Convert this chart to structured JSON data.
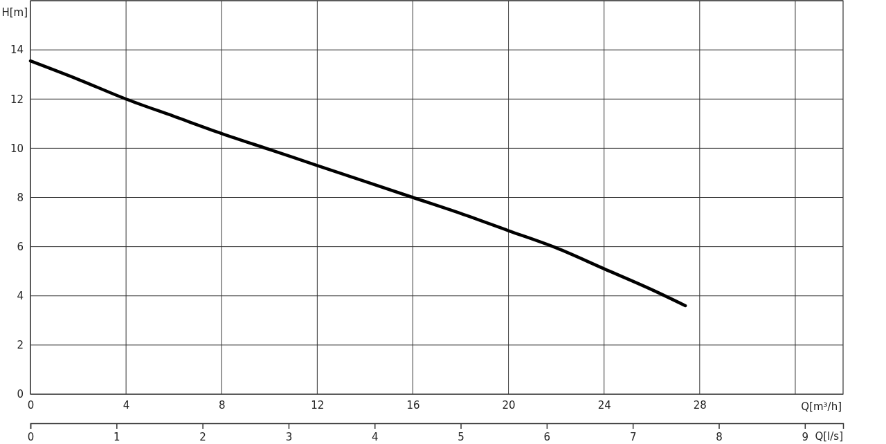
{
  "chart_data": {
    "type": "line",
    "xlabel": "Q[m³/h]",
    "ylabel": "H[m]",
    "x2label": "Q[l/s]",
    "xlim": [
      0,
      34
    ],
    "xticks": [
      0,
      4,
      8,
      12,
      16,
      20,
      24,
      28,
      {
        "value": 32,
        "label": null
      }
    ],
    "ylim": [
      0,
      16
    ],
    "yticks": [
      0,
      2,
      4,
      6,
      8,
      10,
      12,
      14,
      {
        "value": 16,
        "label": null
      }
    ],
    "x2lim": [
      0,
      9.444
    ],
    "x2ticks": [
      0,
      1,
      2,
      3,
      4,
      5,
      6,
      7,
      8,
      9
    ],
    "grid": true,
    "marker": "none",
    "line_style": "solid",
    "series": [
      {
        "color": "#000000",
        "x": [
          0,
          2,
          4,
          6,
          8,
          10,
          12,
          14,
          16,
          18,
          20,
          22,
          24,
          26,
          27.4
        ],
        "values": [
          13.55,
          12.8,
          12.0,
          11.3,
          10.6,
          9.95,
          9.3,
          8.65,
          8.0,
          7.35,
          6.65,
          5.95,
          5.1,
          4.25,
          3.6
        ]
      }
    ]
  }
}
